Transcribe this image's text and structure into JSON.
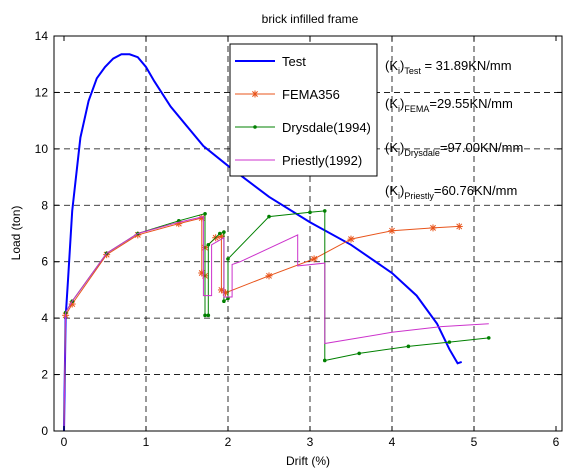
{
  "chart_data": {
    "type": "line",
    "title": "brick infilled frame",
    "xlabel": "Drift (%)",
    "ylabel": "Load (ton)",
    "xlim": [
      0,
      6
    ],
    "ylim": [
      0,
      14
    ],
    "xticks": [
      "0",
      "1",
      "2",
      "3",
      "4",
      "5",
      "6"
    ],
    "yticks": [
      "0",
      "2",
      "4",
      "6",
      "8",
      "10",
      "12",
      "14"
    ],
    "grid": true,
    "legend_position": "top-center",
    "series": [
      {
        "name": "Test",
        "color": "#0000ff",
        "marker": "none",
        "x": [
          0,
          0.02,
          0.05,
          0.1,
          0.2,
          0.3,
          0.4,
          0.5,
          0.6,
          0.7,
          0.8,
          0.9,
          1.0,
          1.1,
          1.3,
          1.5,
          1.7,
          2.0,
          2.5,
          3.0,
          3.5,
          4.0,
          4.3,
          4.55,
          4.7,
          4.8,
          4.85
        ],
        "y": [
          0,
          4.0,
          5.4,
          7.8,
          10.4,
          11.7,
          12.5,
          12.9,
          13.2,
          13.35,
          13.35,
          13.25,
          12.9,
          12.4,
          11.5,
          10.8,
          10.1,
          9.4,
          8.3,
          7.4,
          6.6,
          5.6,
          4.8,
          3.8,
          2.9,
          2.4,
          2.45
        ]
      },
      {
        "name": "FEMA356",
        "color": "#e8541b",
        "marker": "star",
        "x": [
          0,
          0.02,
          0.1,
          0.52,
          0.9,
          1.4,
          1.68,
          1.68,
          1.72,
          1.72,
          1.85,
          1.92,
          1.92,
          1.97,
          2.5,
          3.05,
          3.5,
          4.0,
          4.5,
          4.82
        ],
        "y": [
          0,
          4.1,
          4.5,
          6.25,
          6.95,
          7.35,
          7.55,
          5.6,
          5.5,
          6.5,
          6.85,
          6.9,
          5.0,
          4.9,
          5.5,
          6.1,
          6.8,
          7.1,
          7.2,
          7.25
        ]
      },
      {
        "name": "Drysdale(1994)",
        "color": "#008000",
        "marker": "dot",
        "x": [
          0,
          0.02,
          0.1,
          0.52,
          0.9,
          1.4,
          1.72,
          1.72,
          1.76,
          1.76,
          1.9,
          1.95,
          1.95,
          2.0,
          2.0,
          2.5,
          3.0,
          3.18,
          3.18,
          3.6,
          4.2,
          4.7,
          5.18
        ],
        "y": [
          0,
          4.2,
          4.6,
          6.3,
          7.0,
          7.45,
          7.7,
          4.1,
          4.1,
          6.6,
          7.0,
          7.05,
          4.6,
          4.7,
          6.1,
          7.6,
          7.75,
          7.8,
          2.5,
          2.75,
          3.0,
          3.15,
          3.3
        ]
      },
      {
        "name": "Priestly(1992)",
        "color": "#cc33cc",
        "marker": "none",
        "x": [
          0,
          0.02,
          0.1,
          0.52,
          0.9,
          1.4,
          1.7,
          1.7,
          1.8,
          1.8,
          1.95,
          1.95,
          2.05,
          2.05,
          2.15,
          2.85,
          2.85,
          3.18,
          3.18,
          4.0,
          4.6,
          5.18
        ],
        "y": [
          0,
          4.2,
          4.6,
          6.3,
          7.0,
          7.4,
          7.6,
          4.8,
          4.8,
          6.6,
          6.85,
          4.75,
          4.75,
          5.9,
          6.0,
          6.95,
          5.85,
          5.95,
          3.1,
          3.5,
          3.7,
          3.8
        ]
      }
    ],
    "annotations": [
      {
        "id": "test",
        "main": "(K",
        "sub1": "i",
        "mid": ")",
        "sub2": "Test",
        "tail": " = 31.89KN/mm"
      },
      {
        "id": "fema",
        "main": "(K",
        "sub1": "i",
        "mid": ")",
        "sub2": "FEMA",
        "tail": "=29.55KN/mm"
      },
      {
        "id": "drysdale",
        "main": "(K",
        "sub1": "i",
        "mid": ")",
        "sub2": "Drysdale",
        "tail": "=97.00KN/mm"
      },
      {
        "id": "priestly",
        "main": "(K",
        "sub1": "i",
        "mid": ")",
        "sub2": "Priestly",
        "tail": "=60.76KN/mm"
      }
    ]
  }
}
